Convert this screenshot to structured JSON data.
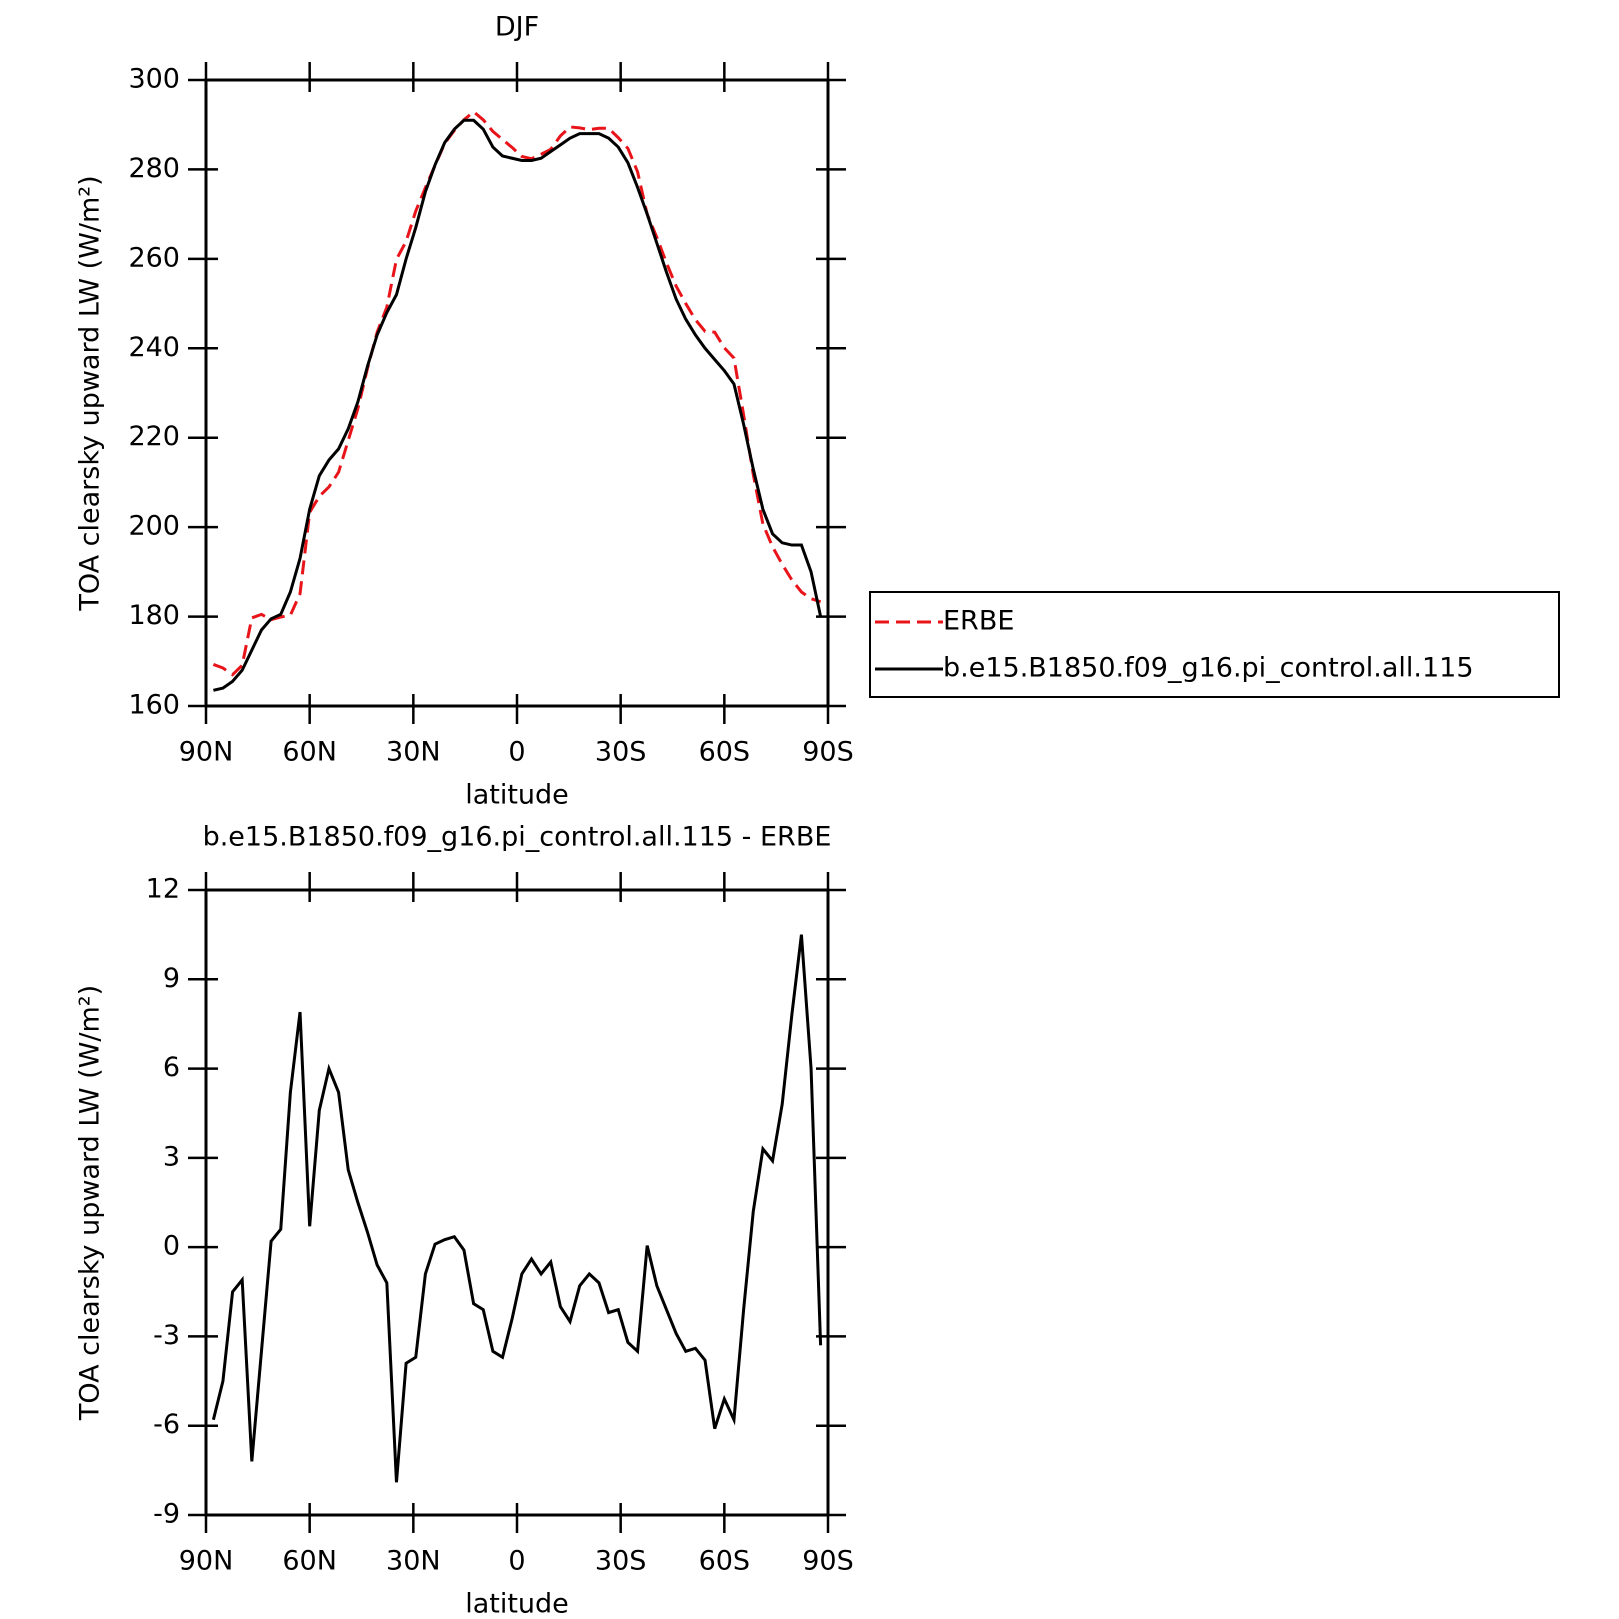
{
  "chart_data": [
    {
      "type": "line",
      "title": "DJF",
      "xlabel": "latitude",
      "ylabel": "TOA clearsky upward LW (W/m²)",
      "x": [
        87.86,
        85.1,
        82.31,
        79.53,
        76.74,
        73.95,
        71.16,
        68.37,
        65.58,
        62.79,
        60.0,
        57.21,
        54.42,
        51.63,
        48.84,
        46.05,
        43.26,
        40.47,
        37.67,
        34.88,
        32.09,
        29.3,
        26.51,
        23.72,
        20.93,
        18.14,
        15.35,
        12.56,
        9.77,
        6.98,
        4.19,
        1.4,
        -1.4,
        -4.19,
        -6.98,
        -9.77,
        -12.56,
        -15.35,
        -18.14,
        -20.93,
        -23.72,
        -26.51,
        -29.3,
        -32.09,
        -34.88,
        -37.67,
        -40.47,
        -43.26,
        -46.05,
        -48.84,
        -51.63,
        -54.42,
        -57.21,
        -60.0,
        -62.79,
        -65.58,
        -68.37,
        -71.16,
        -73.95,
        -76.74,
        -79.53,
        -82.31,
        -85.1,
        -87.86
      ],
      "series": [
        {
          "name": "ERBE",
          "color": "#e8141a",
          "style": "dashed",
          "values": [
            169.3,
            168.5,
            167,
            169.1,
            179.7,
            180.5,
            179.3,
            179.9,
            180.3,
            185.1,
            203.3,
            206.9,
            209,
            212.3,
            219.4,
            226.5,
            235.5,
            243.6,
            249.2,
            259.9,
            263.9,
            270.7,
            275.9,
            280.9,
            285.8,
            288.7,
            291.1,
            292.9,
            291.1,
            288.5,
            286.7,
            284.9,
            282.9,
            282.4,
            283.4,
            284.5,
            287.5,
            289.5,
            289.3,
            288.9,
            289.2,
            289.2,
            287.1,
            284.7,
            279.5,
            270,
            264.8,
            259.1,
            253.9,
            250,
            246.4,
            243.8,
            243.6,
            240.1,
            237.8,
            225.1,
            211.8,
            200.7,
            195.6,
            191.7,
            188.2,
            185.5,
            184,
            183.3
          ]
        },
        {
          "name": "b.e15.B1850.f09_g16.pi_control.all.115",
          "color": "#000000",
          "style": "solid",
          "values": [
            163.5,
            164,
            165.5,
            168,
            172.5,
            177,
            179.5,
            180.5,
            185.5,
            193,
            204,
            211.5,
            215,
            217.5,
            222,
            228,
            236,
            243,
            248,
            252,
            260,
            267,
            275,
            281,
            286,
            289,
            291,
            291,
            289,
            285,
            283,
            282.5,
            282,
            282,
            282.5,
            284,
            285.5,
            287,
            288,
            288,
            288,
            287,
            285,
            281.5,
            276,
            270,
            263.5,
            257,
            251,
            246.5,
            243,
            240,
            237.5,
            235,
            232,
            223,
            213,
            204,
            198.5,
            196.5,
            196,
            196,
            190,
            180
          ]
        }
      ],
      "xlim": [
        90,
        -90
      ],
      "ylim": [
        160,
        300
      ],
      "xticks": [
        {
          "value": 90,
          "label": "90N"
        },
        {
          "value": 60,
          "label": "60N"
        },
        {
          "value": 30,
          "label": "30N"
        },
        0,
        {
          "value": -30,
          "label": "30S"
        },
        {
          "value": -60,
          "label": "60S"
        },
        {
          "value": -90,
          "label": "90S"
        }
      ],
      "yticks": [
        160,
        180,
        200,
        220,
        240,
        260,
        280,
        300
      ],
      "legend": "outside-right"
    },
    {
      "type": "line",
      "title": "b.e15.B1850.f09_g16.pi_control.all.115 - ERBE",
      "xlabel": "latitude",
      "ylabel": "TOA clearsky upward LW (W/m²)",
      "x": [
        87.86,
        85.1,
        82.31,
        79.53,
        76.74,
        73.95,
        71.16,
        68.37,
        65.58,
        62.79,
        60.0,
        57.21,
        54.42,
        51.63,
        48.84,
        46.05,
        43.26,
        40.47,
        37.67,
        34.88,
        32.09,
        29.3,
        26.51,
        23.72,
        20.93,
        18.14,
        15.35,
        12.56,
        9.77,
        6.98,
        4.19,
        1.4,
        -1.4,
        -4.19,
        -6.98,
        -9.77,
        -12.56,
        -15.35,
        -18.14,
        -20.93,
        -23.72,
        -26.51,
        -29.3,
        -32.09,
        -34.88,
        -37.67,
        -40.47,
        -43.26,
        -46.05,
        -48.84,
        -51.63,
        -54.42,
        -57.21,
        -60.0,
        -62.79,
        -65.58,
        -68.37,
        -71.16,
        -73.95,
        -76.74,
        -79.53,
        -82.31,
        -85.1,
        -87.86
      ],
      "color": "#000000",
      "values": [
        -5.8,
        -4.5,
        -1.5,
        -1.1,
        -7.2,
        -3.5,
        0.2,
        0.6,
        5.2,
        7.9,
        0.7,
        4.6,
        6.0,
        5.2,
        2.6,
        1.5,
        0.5,
        -0.6,
        -1.2,
        -7.9,
        -3.9,
        -3.7,
        -0.9,
        0.1,
        0.25,
        0.35,
        -0.1,
        -1.9,
        -2.1,
        -3.5,
        -3.7,
        -2.4,
        -0.9,
        -0.4,
        -0.9,
        -0.5,
        -2.0,
        -2.5,
        -1.3,
        -0.9,
        -1.2,
        -2.2,
        -2.1,
        -3.2,
        -3.5,
        0.05,
        -1.3,
        -2.1,
        -2.9,
        -3.5,
        -3.4,
        -3.8,
        -6.1,
        -5.1,
        -5.8,
        -2.1,
        1.2,
        3.3,
        2.9,
        4.8,
        7.8,
        10.5,
        6.0,
        -3.3
      ],
      "xlim": [
        90,
        -90
      ],
      "ylim": [
        -9,
        12
      ],
      "xticks": [
        {
          "value": 90,
          "label": "90N"
        },
        {
          "value": 60,
          "label": "60N"
        },
        {
          "value": 30,
          "label": "30N"
        },
        0,
        {
          "value": -30,
          "label": "30S"
        },
        {
          "value": -60,
          "label": "60S"
        },
        {
          "value": -90,
          "label": "90S"
        }
      ],
      "yticks": [
        -9,
        -6,
        -3,
        0,
        3,
        6,
        9,
        12
      ]
    }
  ]
}
